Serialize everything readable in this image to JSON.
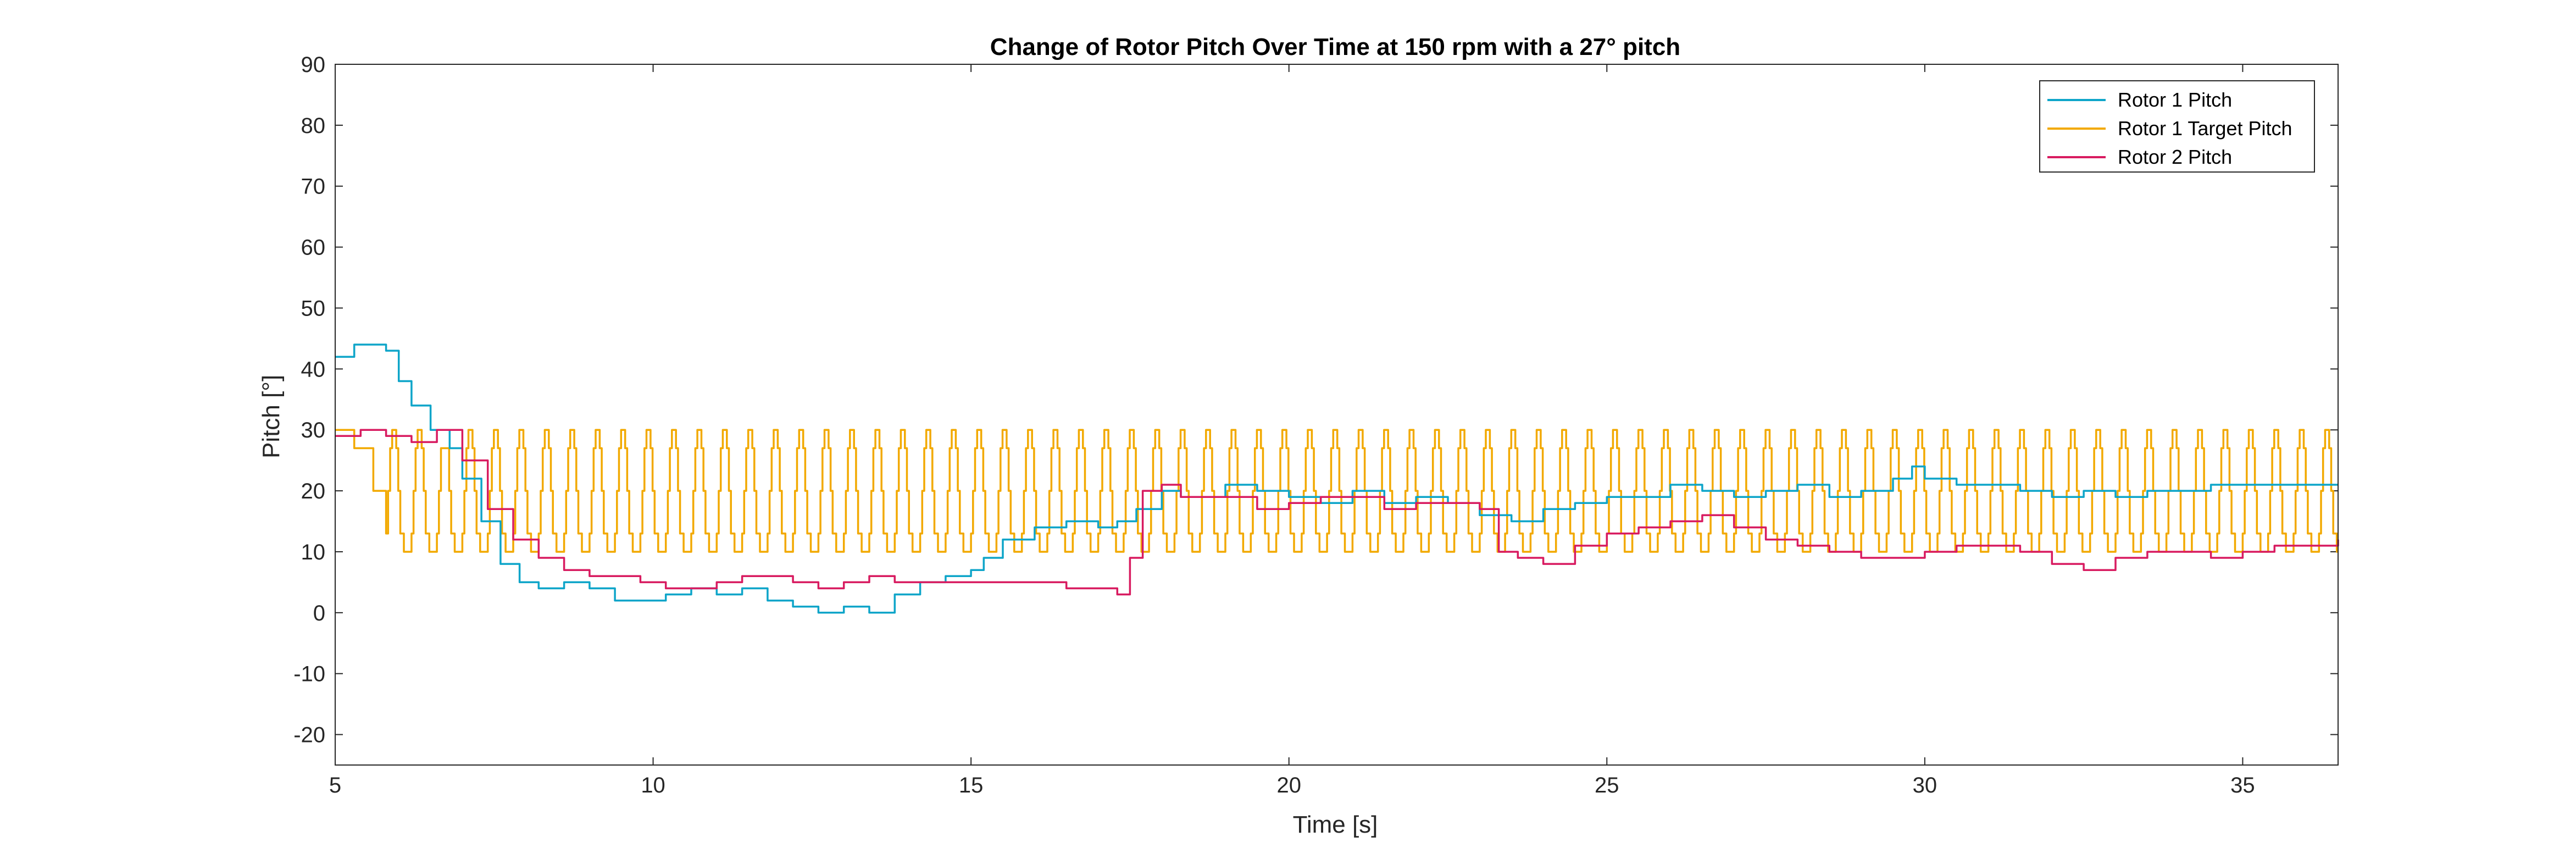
{
  "chart_data": {
    "type": "line",
    "title": "Change of Rotor Pitch Over Time at 150 rpm with a 27° pitch",
    "xlabel": "Time [s]",
    "ylabel": "Pitch [°]",
    "xlim": [
      5,
      36.5
    ],
    "ylim": [
      -25,
      90
    ],
    "xticks": [
      5,
      10,
      15,
      20,
      25,
      30,
      35
    ],
    "yticks": [
      -20,
      -10,
      0,
      10,
      20,
      30,
      40,
      50,
      60,
      70,
      80,
      90
    ],
    "grid": false,
    "legend_position": "top-right",
    "series": [
      {
        "name": "Rotor 1 Pitch",
        "color": "#0ea5c9",
        "step": true,
        "x": [
          5.0,
          5.3,
          5.8,
          6.0,
          6.2,
          6.5,
          6.8,
          7.0,
          7.3,
          7.6,
          7.9,
          8.2,
          8.6,
          9.0,
          9.4,
          9.8,
          10.2,
          10.6,
          11.0,
          11.4,
          11.8,
          12.2,
          12.6,
          13.0,
          13.4,
          13.8,
          14.2,
          14.6,
          15.0,
          15.2,
          15.5,
          16.0,
          16.5,
          17.0,
          17.3,
          17.6,
          18.0,
          18.3,
          18.6,
          19.0,
          19.5,
          20.0,
          20.5,
          21.0,
          21.5,
          22.0,
          22.5,
          23.0,
          23.5,
          24.0,
          24.5,
          25.0,
          25.5,
          26.0,
          26.5,
          27.0,
          27.5,
          28.0,
          28.5,
          29.0,
          29.5,
          29.8,
          30.0,
          30.5,
          31.0,
          31.5,
          32.0,
          32.5,
          33.0,
          33.5,
          34.0,
          34.5,
          35.0,
          35.5,
          36.0,
          36.5
        ],
        "y": [
          42,
          44,
          43,
          38,
          34,
          30,
          27,
          22,
          15,
          8,
          5,
          4,
          5,
          4,
          2,
          2,
          3,
          4,
          3,
          4,
          2,
          1,
          0,
          1,
          0,
          3,
          5,
          6,
          7,
          9,
          12,
          14,
          15,
          14,
          15,
          17,
          20,
          19,
          19,
          21,
          20,
          19,
          18,
          20,
          18,
          19,
          18,
          16,
          15,
          17,
          18,
          19,
          19,
          21,
          20,
          19,
          20,
          21,
          19,
          20,
          22,
          24,
          22,
          21,
          21,
          20,
          19,
          20,
          19,
          20,
          20,
          21,
          21,
          21,
          21,
          21
        ]
      },
      {
        "name": "Rotor 1 Target Pitch",
        "color": "#f2a900",
        "oscillating": true,
        "period": 0.4,
        "oscillation_start": 5.8,
        "start_segment": {
          "x": [
            5.0,
            5.3,
            5.6,
            5.8
          ],
          "y": [
            30,
            27,
            20,
            13
          ]
        },
        "max": [
          30,
          30,
          27,
          30,
          30,
          30,
          30,
          30,
          30,
          30,
          30,
          30,
          30,
          30,
          30,
          30,
          30,
          30,
          30,
          30,
          30,
          30,
          30,
          30,
          30,
          30,
          30,
          30,
          30,
          30,
          30,
          30,
          30,
          30,
          30,
          30,
          30,
          30,
          30,
          30,
          30,
          30,
          30,
          30,
          30,
          30,
          30,
          30,
          30,
          30,
          30,
          30,
          30,
          30,
          30,
          30,
          30,
          30,
          30,
          30,
          30,
          30,
          30,
          30,
          30,
          30,
          30,
          30,
          30,
          30,
          30,
          30,
          30,
          30,
          30,
          30,
          30,
          30,
          30
        ],
        "min": [
          10,
          10,
          10,
          10,
          10,
          10,
          10,
          10,
          10,
          10,
          10,
          10,
          10,
          10,
          10,
          10,
          10,
          10,
          10,
          10,
          10,
          10,
          10,
          10,
          10,
          10,
          10,
          10,
          10,
          10,
          10,
          10,
          10,
          10,
          10,
          10,
          10,
          10,
          10,
          10,
          10,
          10,
          10,
          10,
          10,
          10,
          10,
          10,
          10,
          10,
          10,
          10,
          10,
          10,
          10,
          10,
          10,
          10,
          10,
          10,
          10,
          10,
          10,
          10,
          10,
          10,
          10,
          10,
          10,
          10,
          10,
          10,
          10,
          10,
          10,
          10,
          10,
          10,
          10
        ]
      },
      {
        "name": "Rotor 2 Pitch",
        "color": "#d81b60",
        "step": true,
        "x": [
          5.0,
          5.4,
          5.8,
          6.2,
          6.6,
          7.0,
          7.4,
          7.8,
          8.2,
          8.6,
          9.0,
          9.4,
          9.8,
          10.2,
          10.6,
          11.0,
          11.4,
          11.8,
          12.2,
          12.6,
          13.0,
          13.4,
          13.8,
          14.2,
          14.6,
          15.0,
          15.5,
          16.0,
          16.5,
          17.0,
          17.3,
          17.5,
          17.7,
          18.0,
          18.3,
          18.6,
          19.0,
          19.5,
          20.0,
          20.5,
          21.0,
          21.5,
          22.0,
          22.5,
          23.0,
          23.3,
          23.6,
          24.0,
          24.5,
          25.0,
          25.5,
          26.0,
          26.5,
          27.0,
          27.5,
          28.0,
          28.5,
          29.0,
          29.5,
          30.0,
          30.5,
          31.0,
          31.5,
          32.0,
          32.5,
          33.0,
          33.5,
          34.0,
          34.5,
          35.0,
          35.5,
          36.0,
          36.5
        ],
        "y": [
          29,
          30,
          29,
          28,
          30,
          25,
          17,
          12,
          9,
          7,
          6,
          6,
          5,
          4,
          4,
          5,
          6,
          6,
          5,
          4,
          5,
          6,
          5,
          5,
          5,
          5,
          5,
          5,
          4,
          4,
          3,
          9,
          20,
          21,
          19,
          19,
          19,
          17,
          18,
          19,
          19,
          17,
          18,
          18,
          17,
          10,
          9,
          8,
          11,
          13,
          14,
          15,
          16,
          14,
          12,
          11,
          10,
          9,
          9,
          10,
          11,
          11,
          10,
          8,
          7,
          9,
          10,
          10,
          9,
          10,
          11,
          11,
          12
        ]
      }
    ]
  }
}
